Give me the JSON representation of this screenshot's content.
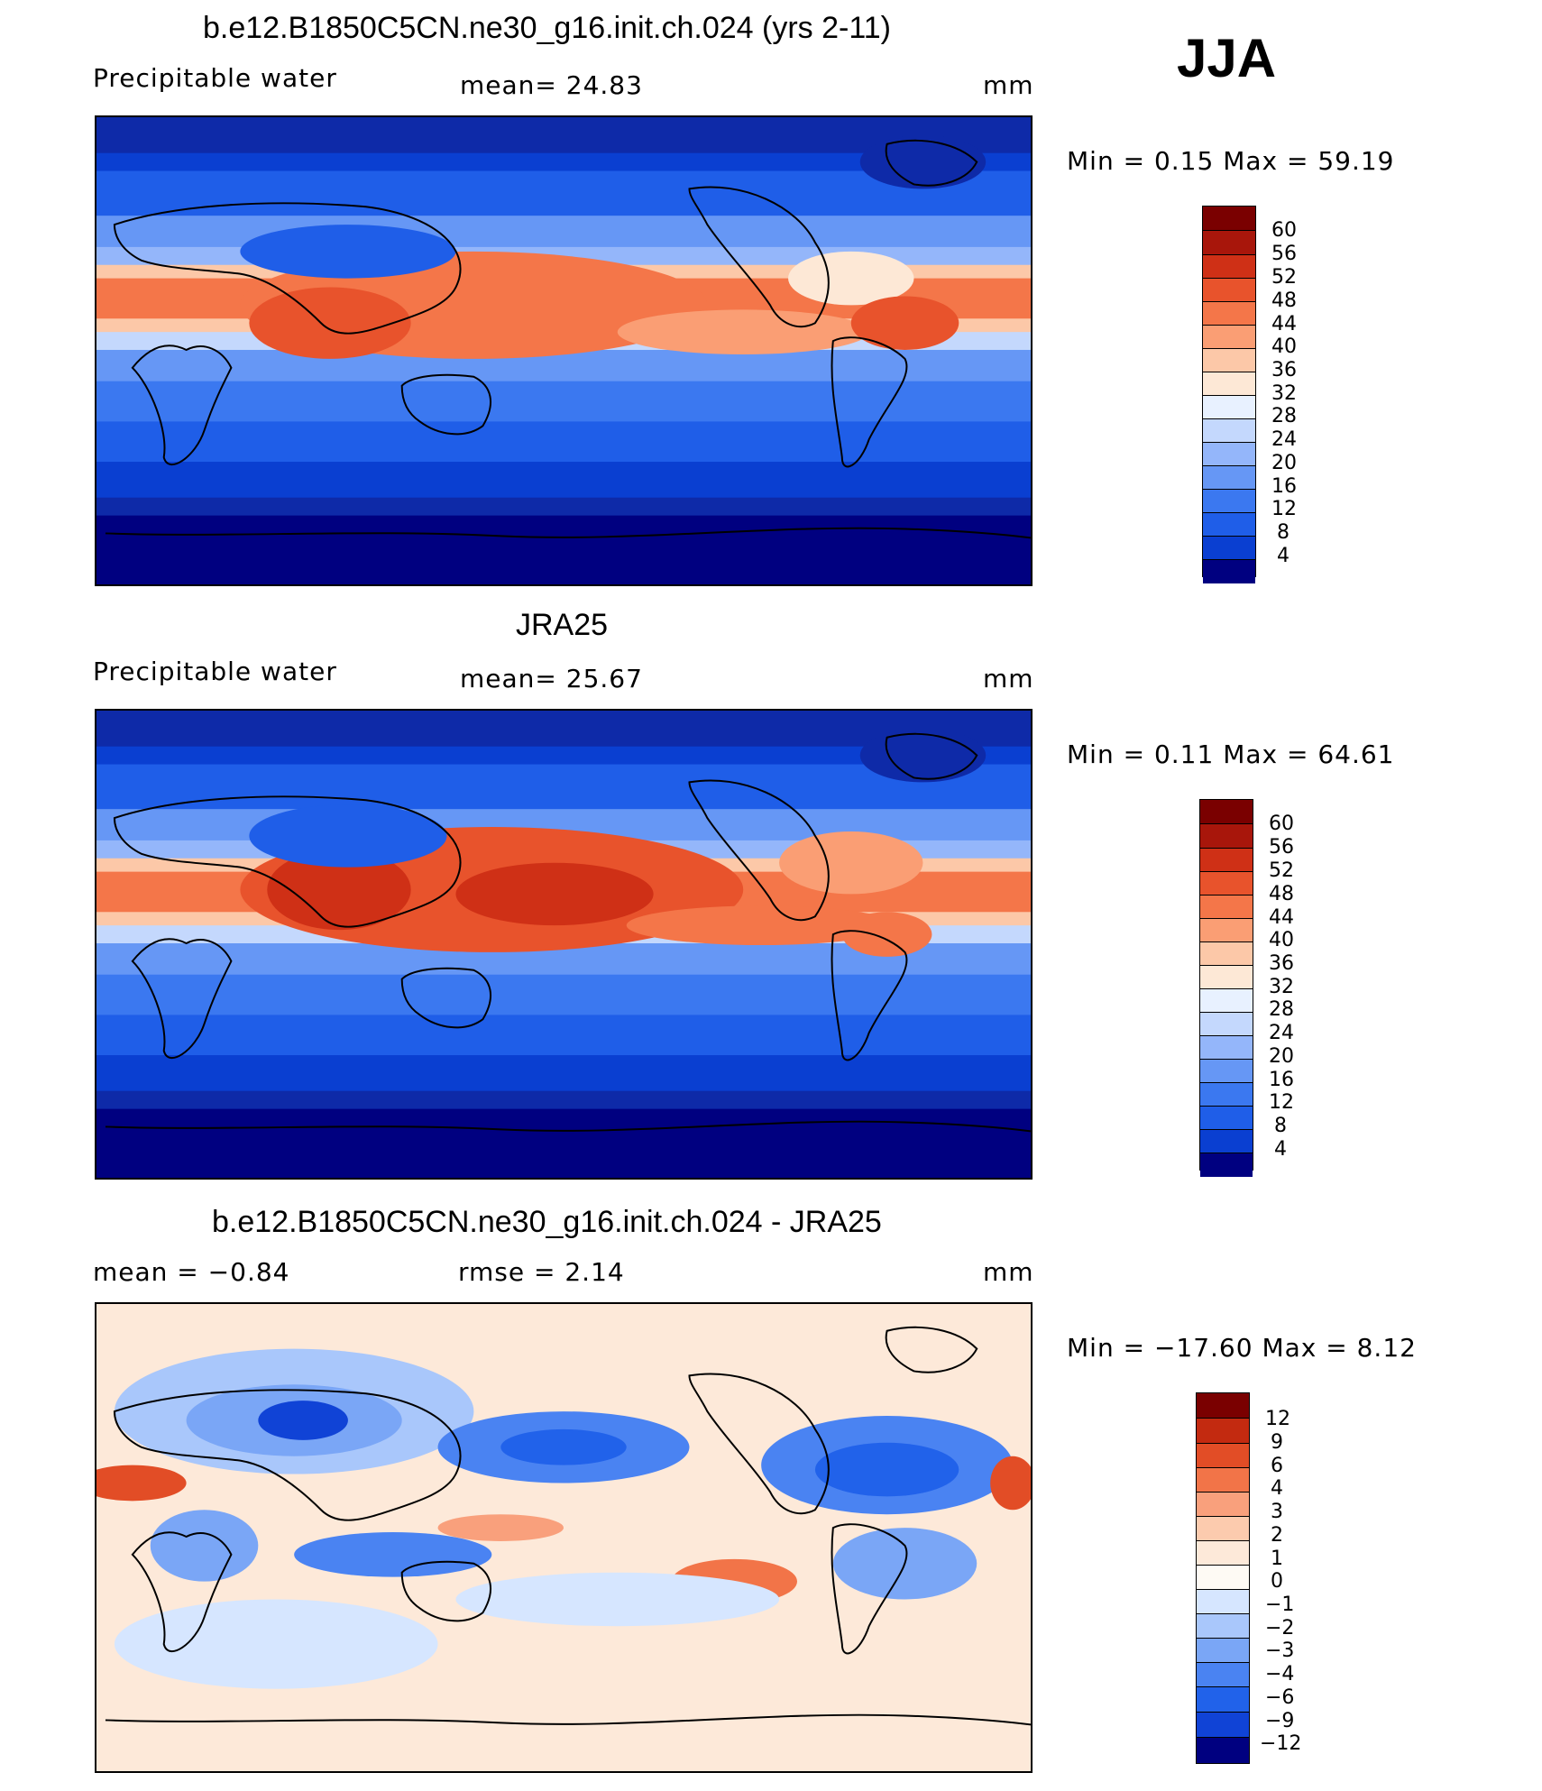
{
  "season": "JJA",
  "panels": [
    {
      "title": "b.e12.B1850C5CN.ne30_g16.init.ch.024 (yrs 2-11)",
      "left_label": "Precipitable  water",
      "center_label": "mean=   24.83",
      "units": "mm",
      "minmax": "Min  =     0.15  Max  =    59.19",
      "colorbar_labels": [
        "60",
        "56",
        "52",
        "48",
        "44",
        "40",
        "36",
        "32",
        "28",
        "24",
        "20",
        "16",
        "12",
        "8",
        "4"
      ]
    },
    {
      "title": "JRA25",
      "left_label": "Precipitable  water",
      "center_label": "mean=   25.67",
      "units": "mm",
      "minmax": "Min  =     0.11  Max  =    64.61",
      "colorbar_labels": [
        "60",
        "56",
        "52",
        "48",
        "44",
        "40",
        "36",
        "32",
        "28",
        "24",
        "20",
        "16",
        "12",
        "8",
        "4"
      ]
    },
    {
      "title": "b.e12.B1850C5CN.ne30_g16.init.ch.024 - JRA25",
      "left_label": "mean  =    −0.84",
      "center_label": "rmse  =     2.14",
      "units": "mm",
      "minmax": "Min  =  −17.60  Max  =     8.12",
      "colorbar_labels": [
        "12",
        "9",
        "6",
        "4",
        "3",
        "2",
        "1",
        "0",
        "−1",
        "−2",
        "−3",
        "−4",
        "−6",
        "−9",
        "−12"
      ]
    }
  ],
  "colors": {
    "abs_scale": [
      "#000080",
      "#0e2aa8",
      "#0a3fd1",
      "#1f5ee8",
      "#3b78f0",
      "#6697f5",
      "#94b6fa",
      "#c4d8fd",
      "#e8f1ff",
      "#fde8d6",
      "#fcc8a8",
      "#fa9e74",
      "#f47649",
      "#e8532c",
      "#cf3016",
      "#a8160b",
      "#7a0000"
    ],
    "diff_scale": [
      "#000080",
      "#0a2bb0",
      "#1043d6",
      "#2162ea",
      "#4a83f2",
      "#7aa6f6",
      "#a9c7fb",
      "#d6e6ff",
      "#fde9d9",
      "#fccbae",
      "#f9a07c",
      "#f27448",
      "#e24d26",
      "#c32a10",
      "#7a0000"
    ]
  }
}
